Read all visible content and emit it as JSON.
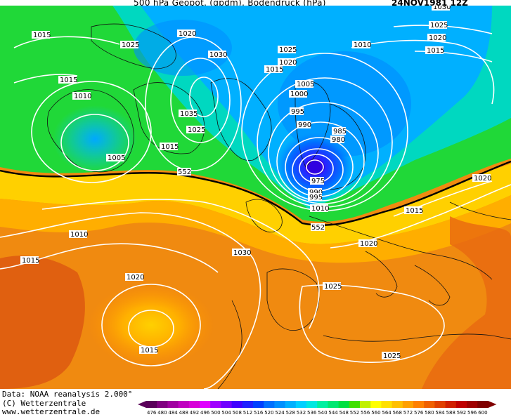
{
  "header": {
    "title": "500 hPa Geopot. (gpdm), Bodendruck (hPa)",
    "datetime": "24NOV1981 12Z"
  },
  "footer": {
    "line1": "Data: NOAA reanalysis 2.000°",
    "line2": "(C) Wetterzentrale",
    "line3": "www.wetterzentrale.de"
  },
  "legend": {
    "ticks": [
      "476",
      "480",
      "484",
      "488",
      "492",
      "496",
      "500",
      "504",
      "508",
      "512",
      "516",
      "520",
      "524",
      "528",
      "532",
      "536",
      "540",
      "544",
      "548",
      "552",
      "556",
      "560",
      "564",
      "568",
      "572",
      "576",
      "580",
      "584",
      "588",
      "592",
      "596",
      "600"
    ],
    "colors": [
      "#5a005a",
      "#800080",
      "#a000a0",
      "#c000c0",
      "#d800d8",
      "#e000ff",
      "#a000ff",
      "#7000ff",
      "#4000ff",
      "#2020ff",
      "#0040ff",
      "#0070ff",
      "#0090ff",
      "#00b0ff",
      "#00d0ff",
      "#00e8e0",
      "#00f0a0",
      "#00e870",
      "#00e040",
      "#40e000",
      "#c0f000",
      "#ffff00",
      "#ffe000",
      "#ffc000",
      "#ffa000",
      "#ff8000",
      "#f06000",
      "#e04000",
      "#d02000",
      "#c00000",
      "#a00000",
      "#800000"
    ]
  },
  "map": {
    "contour_552_label": "552",
    "contour_552_label2": "552",
    "pressure_labels": [
      {
        "id": "p1",
        "text": "1015"
      },
      {
        "id": "p2",
        "text": "1025"
      },
      {
        "id": "p3",
        "text": "1020"
      },
      {
        "id": "p4",
        "text": "1015"
      },
      {
        "id": "p5",
        "text": "1010"
      },
      {
        "id": "p6",
        "text": "1005"
      },
      {
        "id": "p7",
        "text": "1030"
      },
      {
        "id": "p8",
        "text": "1035"
      },
      {
        "id": "p9",
        "text": "1025"
      },
      {
        "id": "p10",
        "text": "1015"
      },
      {
        "id": "p11",
        "text": "1025"
      },
      {
        "id": "p12",
        "text": "1020"
      },
      {
        "id": "p13",
        "text": "1015"
      },
      {
        "id": "p14",
        "text": "1005"
      },
      {
        "id": "p15",
        "text": "1000"
      },
      {
        "id": "p16",
        "text": "995"
      },
      {
        "id": "p17",
        "text": "990"
      },
      {
        "id": "p18",
        "text": "985"
      },
      {
        "id": "p19",
        "text": "980"
      },
      {
        "id": "p20",
        "text": "975"
      },
      {
        "id": "p21",
        "text": "990"
      },
      {
        "id": "p22",
        "text": "995"
      },
      {
        "id": "p23",
        "text": "1010"
      },
      {
        "id": "p24",
        "text": "1010"
      },
      {
        "id": "p25",
        "text": "1025"
      },
      {
        "id": "p26",
        "text": "1020"
      },
      {
        "id": "p27",
        "text": "1015"
      },
      {
        "id": "p28",
        "text": "1030"
      },
      {
        "id": "p29",
        "text": "1020"
      },
      {
        "id": "p30",
        "text": "1010"
      },
      {
        "id": "p31",
        "text": "1015"
      },
      {
        "id": "p32",
        "text": "1030"
      },
      {
        "id": "p33",
        "text": "1020"
      },
      {
        "id": "p34",
        "text": "1015"
      },
      {
        "id": "p35",
        "text": "1020"
      },
      {
        "id": "p36",
        "text": "1025"
      },
      {
        "id": "p37",
        "text": "1015"
      },
      {
        "id": "p38",
        "text": "1020"
      },
      {
        "id": "p39",
        "text": "1025"
      }
    ]
  }
}
